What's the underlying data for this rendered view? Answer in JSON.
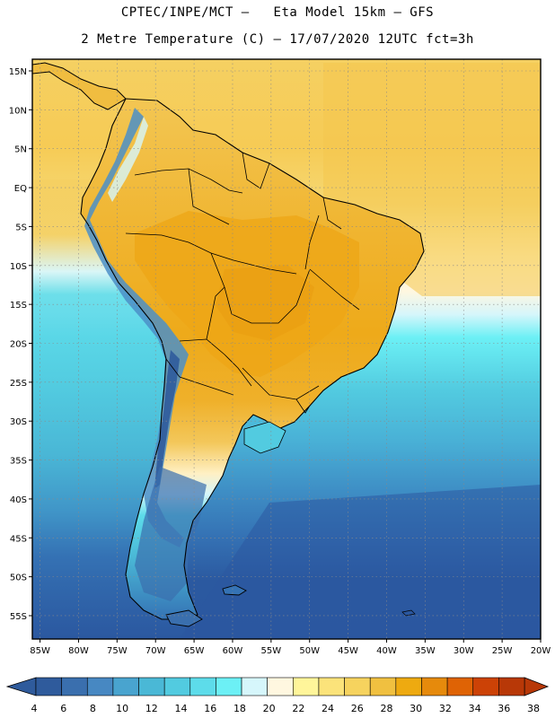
{
  "header": {
    "line1": "CPTEC/INPE/MCT –   Eta Model 15km – GFS",
    "line2": "2 Metre Temperature (C) – 17/07/2020 12UTC fct=3h"
  },
  "map": {
    "lat_ticks": [
      "15N",
      "10N",
      "5N",
      "EQ",
      "5S",
      "10S",
      "15S",
      "20S",
      "25S",
      "30S",
      "35S",
      "40S",
      "45S",
      "50S",
      "55S"
    ],
    "lon_ticks": [
      "85W",
      "80W",
      "75W",
      "70W",
      "65W",
      "60W",
      "55W",
      "50W",
      "45W",
      "40W",
      "35W",
      "30W",
      "25W",
      "20W"
    ],
    "lat_values": [
      15,
      10,
      5,
      0,
      -5,
      -10,
      -15,
      -20,
      -25,
      -30,
      -35,
      -40,
      -45,
      -50,
      -55
    ],
    "lon_values": [
      -85,
      -80,
      -75,
      -70,
      -65,
      -60,
      -55,
      -50,
      -45,
      -40,
      -35,
      -30,
      -25,
      -20
    ],
    "lat_range": [
      -58,
      16.5
    ],
    "lon_range": [
      -86,
      -20
    ]
  },
  "colorbar": {
    "labels": [
      "4",
      "6",
      "8",
      "10",
      "12",
      "14",
      "16",
      "18",
      "20",
      "22",
      "24",
      "26",
      "28",
      "30",
      "32",
      "34",
      "36",
      "38"
    ],
    "colors": [
      "#2f5b9c",
      "#3a6fae",
      "#4788c2",
      "#49a4cf",
      "#4ab8d6",
      "#52cbe0",
      "#5ddcea",
      "#6cf0f5",
      "#d6f6fb",
      "#fff7e0",
      "#fff59a",
      "#fbe37a",
      "#f6d35e",
      "#f0c040",
      "#eeaa10",
      "#e68a0c",
      "#df6305",
      "#cc4206",
      "#b83807"
    ],
    "low_color": "#2f5b9c",
    "high_color": "#b83807"
  },
  "colors": {
    "ocean_cold": "#2b59a0",
    "ocean_mid": "#52cfe2",
    "ocean_warm": "#f5d062",
    "land_warm": "#f0b02a",
    "andes": "#4b8fc8"
  }
}
